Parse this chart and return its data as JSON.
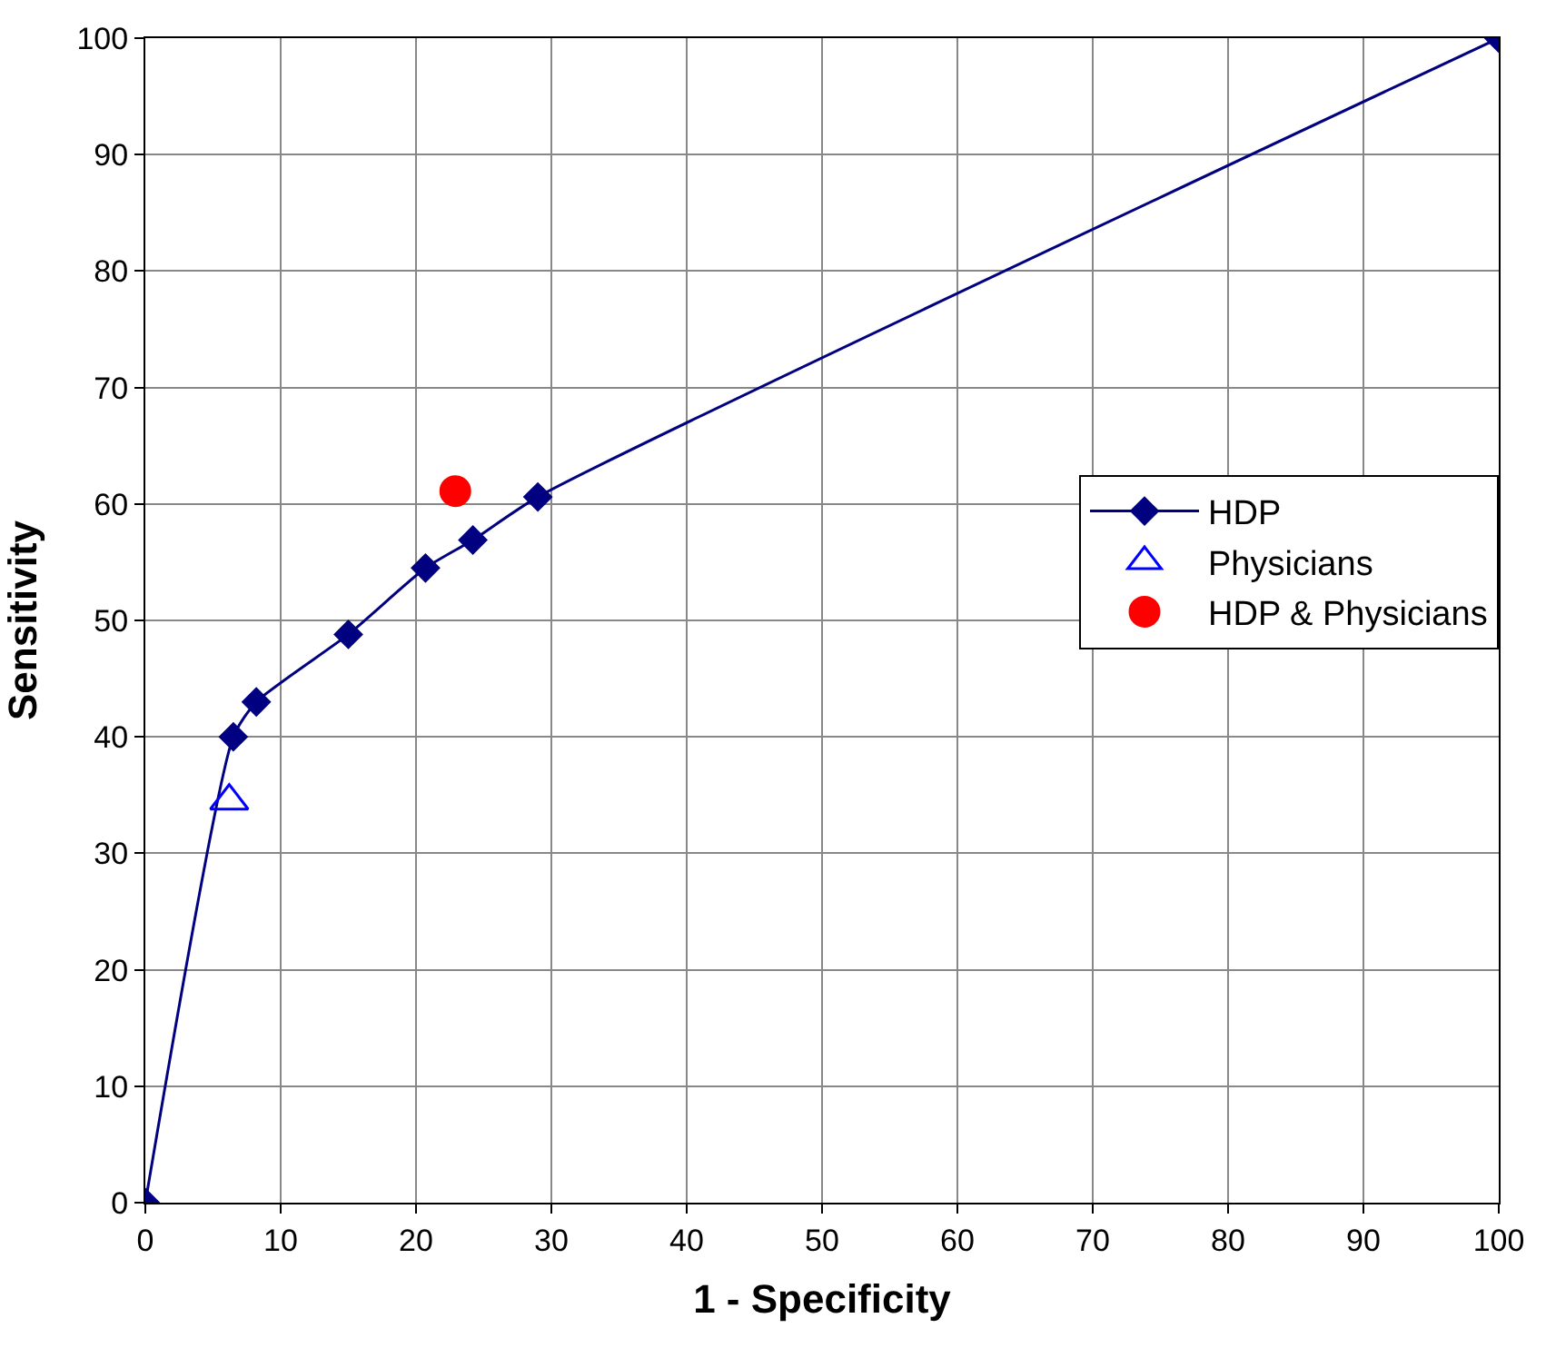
{
  "chart_data": {
    "type": "line",
    "xlabel": "1 - Specificity",
    "ylabel": "Sensitivity",
    "xlim": [
      0,
      100
    ],
    "ylim": [
      0,
      100
    ],
    "xticks": [
      0,
      10,
      20,
      30,
      40,
      50,
      60,
      70,
      80,
      90,
      100
    ],
    "yticks": [
      0,
      10,
      20,
      30,
      40,
      50,
      60,
      70,
      80,
      90,
      100
    ],
    "grid": true,
    "legend": "right",
    "series": [
      {
        "name": "HDP",
        "color": "#000080",
        "marker": "diamond",
        "line_style": "solid",
        "x": [
          0,
          6.5,
          8.2,
          15,
          20.7,
          24.2,
          29,
          100
        ],
        "values": [
          0,
          40,
          43,
          48.8,
          54.5,
          56.9,
          60.6,
          100
        ]
      },
      {
        "name": "Physicians",
        "type": "scatter",
        "color": "#0000ff",
        "marker": "triangle",
        "x": [
          6.2
        ],
        "values": [
          34.5
        ]
      },
      {
        "name": "HDP & Physicians",
        "type": "scatter",
        "color": "#ff0000",
        "marker": "circle",
        "x": [
          22.9
        ],
        "values": [
          61.1
        ]
      }
    ]
  }
}
